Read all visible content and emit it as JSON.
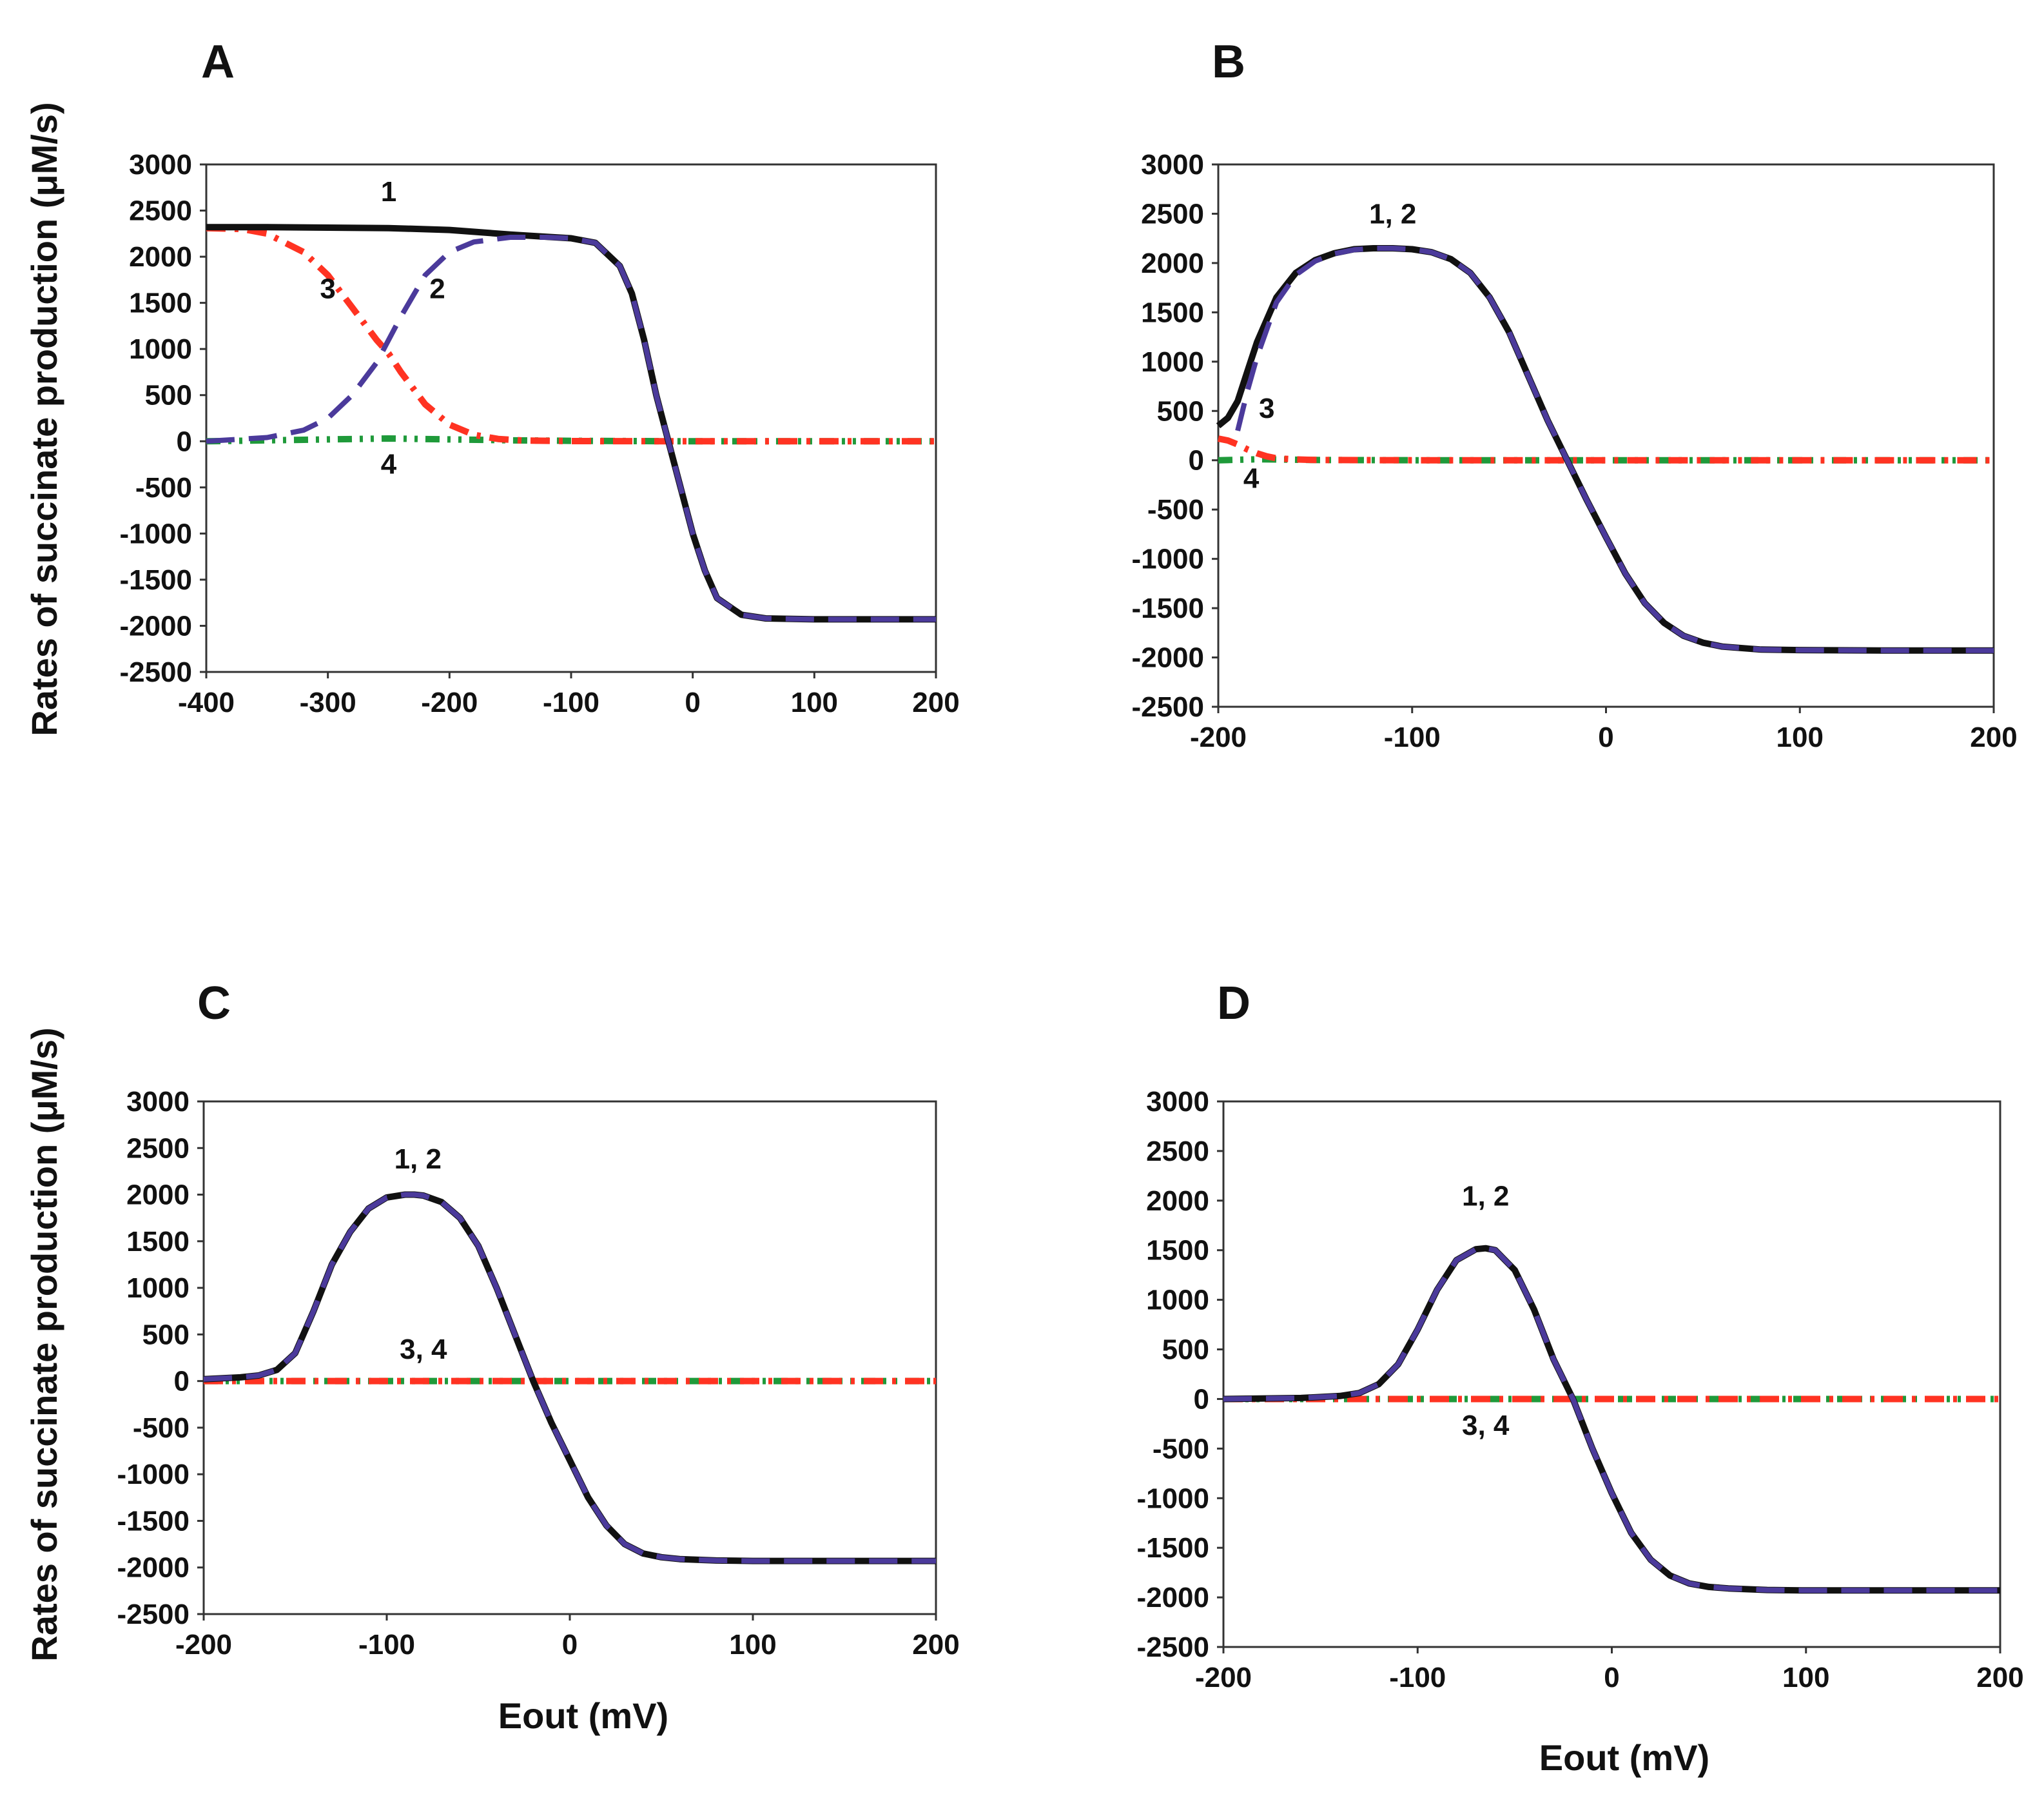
{
  "figure": {
    "ylabel_top": "Rates of succinate production (μM/s)",
    "ylabel_bottom": "Rates of succinate production (μM/s)",
    "xlabel_c": "Eout   (mV)",
    "xlabel_d": "Eout   (mV)"
  },
  "colors": {
    "curve_1": "#111111",
    "curve_2": "#4b3a9b",
    "curve_3": "#ff3322",
    "curve_4": "#1f9a3a"
  },
  "chart_data": [
    {
      "panel": "A",
      "type": "line",
      "xlim": [
        -400,
        200
      ],
      "ylim": [
        -2500,
        3000
      ],
      "xticks": [
        "-400",
        "-300",
        "-200",
        "-100",
        "0",
        "100",
        "200"
      ],
      "yticks": [
        "3000",
        "2500",
        "2000",
        "1500",
        "1000",
        "500",
        "0",
        "-500",
        "-1000",
        "-1500",
        "-2000",
        "-2500"
      ],
      "series": [
        {
          "name": "1",
          "style": "solid",
          "x": [
            -400,
            -350,
            -300,
            -250,
            -200,
            -150,
            -120,
            -100,
            -80,
            -60,
            -50,
            -40,
            -30,
            -20,
            -10,
            0,
            10,
            20,
            40,
            60,
            100,
            150,
            200
          ],
          "y": [
            2320,
            2320,
            2315,
            2310,
            2290,
            2240,
            2215,
            2200,
            2150,
            1900,
            1600,
            1100,
            500,
            0,
            -500,
            -1000,
            -1400,
            -1700,
            -1880,
            -1920,
            -1930,
            -1930,
            -1930
          ]
        },
        {
          "name": "2",
          "style": "dashed",
          "x": [
            -400,
            -350,
            -320,
            -300,
            -280,
            -260,
            -250,
            -240,
            -220,
            -200,
            -180,
            -150,
            -120,
            -100,
            -80,
            -60,
            -50,
            -40,
            -30,
            -20,
            -10,
            0,
            10,
            20,
            40,
            60,
            100,
            150,
            200
          ],
          "y": [
            0,
            40,
            120,
            250,
            500,
            850,
            1100,
            1350,
            1800,
            2050,
            2160,
            2210,
            2210,
            2200,
            2150,
            1900,
            1600,
            1100,
            500,
            0,
            -500,
            -1000,
            -1400,
            -1700,
            -1880,
            -1920,
            -1930,
            -1930,
            -1930
          ]
        },
        {
          "name": "3",
          "style": "dashdot",
          "x": [
            -400,
            -370,
            -350,
            -320,
            -300,
            -280,
            -260,
            -250,
            -240,
            -220,
            -200,
            -180,
            -160,
            -140,
            -100,
            0,
            100,
            200
          ],
          "y": [
            2310,
            2300,
            2250,
            2050,
            1800,
            1450,
            1100,
            950,
            750,
            400,
            180,
            70,
            25,
            8,
            2,
            0,
            0,
            0
          ]
        },
        {
          "name": "4",
          "style": "dashdotdot",
          "x": [
            -400,
            -300,
            -250,
            -200,
            -150,
            -100,
            0,
            100,
            200
          ],
          "y": [
            0,
            20,
            30,
            20,
            10,
            5,
            0,
            0,
            0
          ]
        }
      ],
      "annotations": [
        {
          "text": "1",
          "x": -250,
          "y": 2600
        },
        {
          "text": "2",
          "x": -210,
          "y": 1550
        },
        {
          "text": "3",
          "x": -300,
          "y": 1550
        },
        {
          "text": "4",
          "x": -250,
          "y": -350
        }
      ]
    },
    {
      "panel": "B",
      "type": "line",
      "xlim": [
        -200,
        200
      ],
      "ylim": [
        -2500,
        3000
      ],
      "xticks": [
        "-200",
        "-100",
        "0",
        "100",
        "200"
      ],
      "yticks": [
        "3000",
        "2500",
        "2000",
        "1500",
        "1000",
        "500",
        "0",
        "-500",
        "-1000",
        "-1500",
        "-2000",
        "-2500"
      ],
      "series": [
        {
          "name": "1",
          "style": "solid",
          "x": [
            -200,
            -195,
            -190,
            -185,
            -180,
            -170,
            -160,
            -150,
            -140,
            -130,
            -120,
            -110,
            -100,
            -90,
            -80,
            -70,
            -60,
            -50,
            -40,
            -30,
            -20,
            -10,
            0,
            10,
            20,
            30,
            40,
            50,
            60,
            80,
            100,
            150,
            200
          ],
          "y": [
            350,
            430,
            600,
            900,
            1200,
            1650,
            1900,
            2030,
            2100,
            2140,
            2150,
            2150,
            2140,
            2110,
            2040,
            1900,
            1650,
            1300,
            850,
            400,
            0,
            -400,
            -780,
            -1150,
            -1450,
            -1650,
            -1780,
            -1850,
            -1890,
            -1920,
            -1925,
            -1930,
            -1930
          ]
        },
        {
          "name": "2",
          "style": "dashed",
          "x": [
            -190,
            -185,
            -180,
            -170,
            -160,
            -150,
            -140,
            -130,
            -120,
            -110,
            -100,
            -90,
            -80,
            -70,
            -60,
            -50,
            -40,
            -30,
            -20,
            -10,
            0,
            10,
            20,
            30,
            40,
            50,
            60,
            80,
            100,
            150,
            200
          ],
          "y": [
            300,
            700,
            1050,
            1600,
            1880,
            2020,
            2095,
            2135,
            2150,
            2150,
            2140,
            2110,
            2040,
            1900,
            1650,
            1300,
            850,
            400,
            0,
            -400,
            -780,
            -1150,
            -1450,
            -1650,
            -1780,
            -1850,
            -1890,
            -1920,
            -1925,
            -1930,
            -1930
          ]
        },
        {
          "name": "3",
          "style": "dashdot",
          "x": [
            -200,
            -195,
            -190,
            -185,
            -180,
            -175,
            -170,
            -160,
            -150,
            -100,
            0,
            100,
            200
          ],
          "y": [
            220,
            200,
            160,
            110,
            70,
            40,
            20,
            8,
            3,
            0,
            0,
            0,
            0
          ]
        },
        {
          "name": "4",
          "style": "dashdotdot",
          "x": [
            -200,
            -190,
            -180,
            -170,
            -150,
            -100,
            0,
            100,
            200
          ],
          "y": [
            0,
            5,
            10,
            8,
            3,
            0,
            0,
            0,
            0
          ]
        }
      ],
      "annotations": [
        {
          "text": "1, 2",
          "x": -110,
          "y": 2400
        },
        {
          "text": "3",
          "x": -175,
          "y": 430
        },
        {
          "text": "4",
          "x": -183,
          "y": -280
        }
      ]
    },
    {
      "panel": "C",
      "type": "line",
      "xlim": [
        -200,
        200
      ],
      "ylim": [
        -2500,
        3000
      ],
      "xticks": [
        "-200",
        "-100",
        "0",
        "100",
        "200"
      ],
      "yticks": [
        "3000",
        "2500",
        "2000",
        "1500",
        "1000",
        "500",
        "0",
        "-500",
        "-1000",
        "-1500",
        "-2000",
        "-2500"
      ],
      "series": [
        {
          "name": "1",
          "style": "solid",
          "x": [
            -200,
            -180,
            -170,
            -160,
            -150,
            -140,
            -130,
            -120,
            -110,
            -100,
            -90,
            -85,
            -80,
            -70,
            -60,
            -50,
            -40,
            -30,
            -20,
            -10,
            0,
            10,
            20,
            30,
            40,
            50,
            60,
            80,
            100,
            150,
            200
          ],
          "y": [
            20,
            40,
            60,
            120,
            300,
            750,
            1250,
            1600,
            1850,
            1970,
            2000,
            2000,
            1990,
            1920,
            1750,
            1450,
            1000,
            500,
            0,
            -450,
            -850,
            -1250,
            -1550,
            -1750,
            -1850,
            -1890,
            -1910,
            -1925,
            -1930,
            -1930,
            -1930
          ]
        },
        {
          "name": "2",
          "style": "dashed",
          "x": [
            -200,
            -180,
            -170,
            -160,
            -150,
            -140,
            -130,
            -120,
            -110,
            -100,
            -90,
            -85,
            -80,
            -70,
            -60,
            -50,
            -40,
            -30,
            -20,
            -10,
            0,
            10,
            20,
            30,
            40,
            50,
            60,
            80,
            100,
            150,
            200
          ],
          "y": [
            20,
            40,
            60,
            120,
            300,
            750,
            1250,
            1600,
            1850,
            1970,
            2000,
            2000,
            1990,
            1920,
            1750,
            1450,
            1000,
            500,
            0,
            -450,
            -850,
            -1250,
            -1550,
            -1750,
            -1850,
            -1890,
            -1910,
            -1925,
            -1930,
            -1930,
            -1930
          ]
        },
        {
          "name": "3",
          "style": "dashdot",
          "x": [
            -200,
            -100,
            0,
            100,
            200
          ],
          "y": [
            0,
            0,
            0,
            0,
            0
          ]
        },
        {
          "name": "4",
          "style": "dashdotdot",
          "x": [
            -200,
            -100,
            0,
            100,
            200
          ],
          "y": [
            0,
            0,
            0,
            0,
            0
          ]
        }
      ],
      "annotations": [
        {
          "text": "1, 2",
          "x": -83,
          "y": 2280
        },
        {
          "text": "3, 4",
          "x": -80,
          "y": 240
        }
      ]
    },
    {
      "panel": "D",
      "type": "line",
      "xlim": [
        -200,
        200
      ],
      "ylim": [
        -2500,
        3000
      ],
      "xticks": [
        "-200",
        "-100",
        "0",
        "100",
        "200"
      ],
      "yticks": [
        "3000",
        "2500",
        "2000",
        "1500",
        "1000",
        "500",
        "0",
        "-500",
        "-1000",
        "-1500",
        "-2000",
        "-2500"
      ],
      "series": [
        {
          "name": "1",
          "style": "solid",
          "x": [
            -200,
            -160,
            -140,
            -130,
            -120,
            -110,
            -100,
            -90,
            -80,
            -70,
            -65,
            -60,
            -50,
            -40,
            -30,
            -20,
            -10,
            0,
            10,
            20,
            30,
            40,
            50,
            60,
            80,
            100,
            150,
            200
          ],
          "y": [
            0,
            10,
            30,
            60,
            150,
            350,
            700,
            1100,
            1400,
            1510,
            1520,
            1500,
            1300,
            900,
            400,
            0,
            -500,
            -950,
            -1350,
            -1620,
            -1780,
            -1860,
            -1895,
            -1910,
            -1925,
            -1930,
            -1930,
            -1930
          ]
        },
        {
          "name": "2",
          "style": "dashed",
          "x": [
            -200,
            -160,
            -140,
            -130,
            -120,
            -110,
            -100,
            -90,
            -80,
            -70,
            -65,
            -60,
            -50,
            -40,
            -30,
            -20,
            -10,
            0,
            10,
            20,
            30,
            40,
            50,
            60,
            80,
            100,
            150,
            200
          ],
          "y": [
            0,
            10,
            30,
            60,
            150,
            350,
            700,
            1100,
            1400,
            1510,
            1520,
            1500,
            1300,
            900,
            400,
            0,
            -500,
            -950,
            -1350,
            -1620,
            -1780,
            -1860,
            -1895,
            -1910,
            -1925,
            -1930,
            -1930,
            -1930
          ]
        },
        {
          "name": "3",
          "style": "dashdot",
          "x": [
            -200,
            -100,
            0,
            100,
            200
          ],
          "y": [
            0,
            0,
            0,
            0,
            0
          ]
        },
        {
          "name": "4",
          "style": "dashdotdot",
          "x": [
            -200,
            -100,
            0,
            100,
            200
          ],
          "y": [
            0,
            0,
            0,
            0,
            0
          ]
        }
      ],
      "annotations": [
        {
          "text": "1, 2",
          "x": -65,
          "y": 1950
        },
        {
          "text": "3, 4",
          "x": -65,
          "y": -360
        }
      ]
    }
  ]
}
